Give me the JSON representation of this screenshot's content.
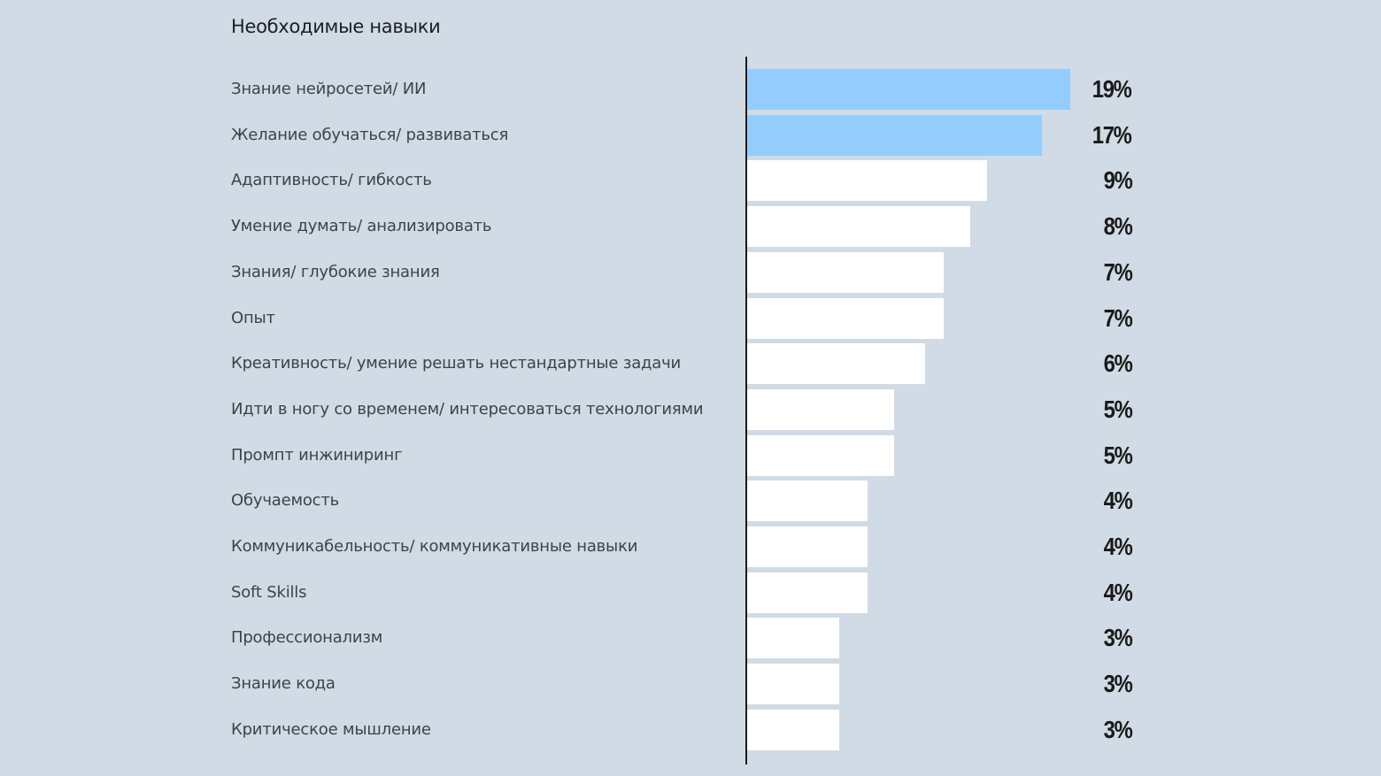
{
  "chart_data": {
    "type": "bar",
    "orientation": "horizontal",
    "title": "Необходимые навыки",
    "xlabel": "",
    "ylabel": "",
    "unit": "%",
    "xlim": [
      0,
      19
    ],
    "grid": false,
    "legend": null,
    "highlight_color": "#94cdfd",
    "default_color": "#ffffff",
    "categories": [
      "Знание нейросетей/ ИИ",
      "Желание обучаться/ развиваться",
      "Адаптивность/ гибкость",
      "Умение думать/ анализировать",
      "Знания/ глубокие знания",
      "Опыт",
      "Креативность/ умение решать нестандартные задачи",
      "Идти в ногу со временем/ интересоваться технологиями",
      "Промпт инжиниринг",
      "Обучаемость",
      "Коммуникабельность/ коммуникативные навыки",
      "Soft Skills",
      "Профессионализм",
      "Знание кода",
      "Критическое мышление"
    ],
    "values": [
      19,
      17,
      9,
      8,
      7,
      7,
      6,
      5,
      5,
      4,
      4,
      4,
      3,
      3,
      3
    ],
    "value_labels": [
      "19%",
      "17%",
      "9%",
      "8%",
      "7%",
      "7%",
      "6%",
      "5%",
      "5%",
      "4%",
      "4%",
      "4%",
      "3%",
      "3%",
      "3%"
    ],
    "highlighted": [
      true,
      true,
      false,
      false,
      false,
      false,
      false,
      false,
      false,
      false,
      false,
      false,
      false,
      false,
      false
    ]
  }
}
